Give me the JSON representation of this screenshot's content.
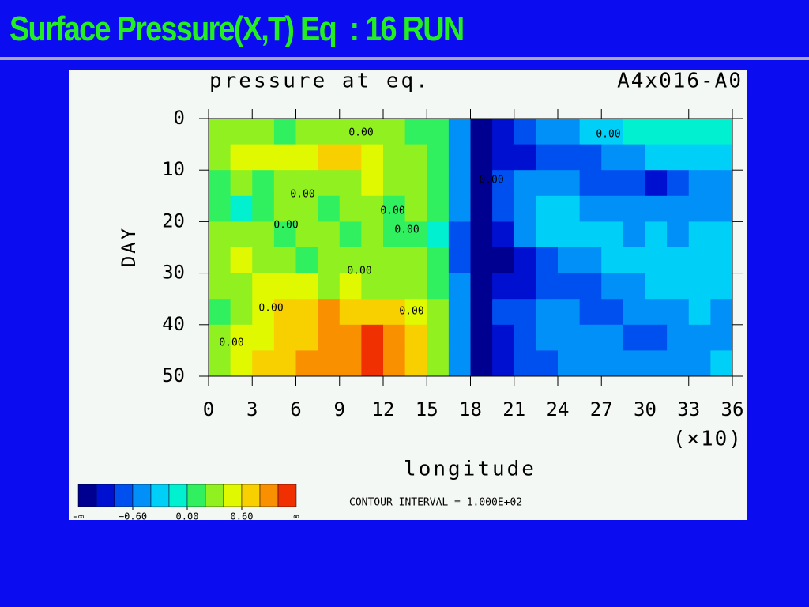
{
  "slide_title": "Surface Pressure(X,T) Eq  : 16 RUN",
  "chart_data": {
    "type": "heatmap",
    "title": "pressure at eq.",
    "run_label": "A4x016-A0",
    "xlabel": "longitude",
    "x_multiplier_label": "(×10)",
    "ylabel": "DAY",
    "contour_note": "CONTOUR INTERVAL = 1.000E+02",
    "xlim": [
      0,
      360
    ],
    "ylim": [
      0,
      50
    ],
    "y_inverted": true,
    "xticks": [
      {
        "value": 0,
        "label": "0"
      },
      {
        "value": 30,
        "label": "3"
      },
      {
        "value": 60,
        "label": "6"
      },
      {
        "value": 90,
        "label": "9"
      },
      {
        "value": 120,
        "label": "12"
      },
      {
        "value": 150,
        "label": "15"
      },
      {
        "value": 180,
        "label": "18"
      },
      {
        "value": 210,
        "label": "21"
      },
      {
        "value": 240,
        "label": "24"
      },
      {
        "value": 270,
        "label": "27"
      },
      {
        "value": 300,
        "label": "30"
      },
      {
        "value": 330,
        "label": "33"
      },
      {
        "value": 360,
        "label": "36"
      }
    ],
    "yticks": [
      0,
      10,
      20,
      30,
      40,
      50
    ],
    "levels": [
      -1.0,
      -0.8,
      -0.6,
      -0.4,
      -0.2,
      0,
      0.2,
      0.4,
      0.6,
      0.8,
      1.0
    ],
    "colors": [
      "#000090",
      "#0010d0",
      "#0050f0",
      "#0090f8",
      "#00d0f8",
      "#00f0d0",
      "#30f060",
      "#90f020",
      "#e0f800",
      "#f8d000",
      "#f89000",
      "#f03000"
    ],
    "colorbar_ticks": [
      {
        "value": -0.6,
        "label": "−0.60"
      },
      {
        "value": 0,
        "label": "0.00"
      },
      {
        "value": 0.6,
        "label": "0.60"
      }
    ],
    "colorbar_ends": [
      "-∞",
      "∞"
    ],
    "contour_labels": [
      "0.00",
      "0.00",
      "0.00",
      "0.00",
      "0.00",
      "0.00",
      "0.00",
      "0.00",
      "0.00",
      "0.00",
      "0.00"
    ],
    "z": [
      [
        0.2,
        0.2,
        0.2,
        0.0,
        0.2,
        0.2,
        0.2,
        0.2,
        0.2,
        0.0,
        0.0,
        -0.6,
        -1.2,
        -1.0,
        -0.8,
        -0.6,
        -0.6,
        -0.4,
        -0.4,
        -0.2,
        -0.2,
        -0.2,
        -0.2,
        -0.2
      ],
      [
        0.2,
        0.4,
        0.4,
        0.4,
        0.4,
        0.6,
        0.6,
        0.4,
        0.2,
        0.2,
        0.0,
        -0.6,
        -1.2,
        -1.0,
        -1.0,
        -0.8,
        -0.8,
        -0.8,
        -0.6,
        -0.6,
        -0.4,
        -0.4,
        -0.4,
        -0.4
      ],
      [
        0.0,
        0.2,
        0.0,
        0.2,
        0.2,
        0.2,
        0.2,
        0.4,
        0.2,
        0.2,
        0.0,
        -0.6,
        -1.2,
        -0.8,
        -0.6,
        -0.6,
        -0.6,
        -0.8,
        -0.8,
        -0.8,
        -1.0,
        -0.8,
        -0.6,
        -0.6
      ],
      [
        0.0,
        -0.2,
        0.0,
        0.2,
        0.2,
        0.0,
        0.2,
        0.2,
        0.0,
        0.2,
        0.0,
        -0.6,
        -1.2,
        -0.8,
        -0.6,
        -0.4,
        -0.4,
        -0.6,
        -0.6,
        -0.6,
        -0.6,
        -0.6,
        -0.6,
        -0.6
      ],
      [
        0.2,
        0.2,
        0.2,
        0.0,
        0.2,
        0.2,
        0.0,
        0.2,
        0.0,
        0.0,
        -0.2,
        -0.8,
        -1.2,
        -1.0,
        -0.6,
        -0.4,
        -0.4,
        -0.4,
        -0.4,
        -0.6,
        -0.4,
        -0.6,
        -0.4,
        -0.4
      ],
      [
        0.2,
        0.4,
        0.2,
        0.2,
        0.0,
        0.2,
        0.2,
        0.2,
        0.2,
        0.2,
        0.0,
        -0.8,
        -1.2,
        -1.2,
        -1.0,
        -0.8,
        -0.6,
        -0.6,
        -0.4,
        -0.4,
        -0.4,
        -0.4,
        -0.4,
        -0.4
      ],
      [
        0.2,
        0.2,
        0.4,
        0.4,
        0.4,
        0.2,
        0.4,
        0.2,
        0.2,
        0.2,
        0.0,
        -0.6,
        -1.2,
        -1.0,
        -1.0,
        -0.8,
        -0.8,
        -0.8,
        -0.6,
        -0.6,
        -0.4,
        -0.4,
        -0.4,
        -0.4
      ],
      [
        0.0,
        0.2,
        0.4,
        0.6,
        0.6,
        0.8,
        0.6,
        0.6,
        0.6,
        0.4,
        0.2,
        -0.6,
        -1.2,
        -0.8,
        -0.8,
        -0.6,
        -0.6,
        -0.8,
        -0.8,
        -0.6,
        -0.6,
        -0.6,
        -0.4,
        -0.6
      ],
      [
        0.2,
        0.4,
        0.4,
        0.6,
        0.6,
        0.8,
        0.8,
        1.0,
        0.8,
        0.6,
        0.2,
        -0.6,
        -1.2,
        -1.0,
        -0.8,
        -0.6,
        -0.6,
        -0.6,
        -0.6,
        -0.8,
        -0.8,
        -0.6,
        -0.6,
        -0.6
      ],
      [
        0.2,
        0.4,
        0.6,
        0.6,
        0.8,
        0.8,
        0.8,
        1.0,
        0.8,
        0.6,
        0.2,
        -0.6,
        -1.2,
        -1.0,
        -0.8,
        -0.8,
        -0.6,
        -0.6,
        -0.6,
        -0.6,
        -0.6,
        -0.6,
        -0.6,
        -0.4
      ]
    ]
  }
}
